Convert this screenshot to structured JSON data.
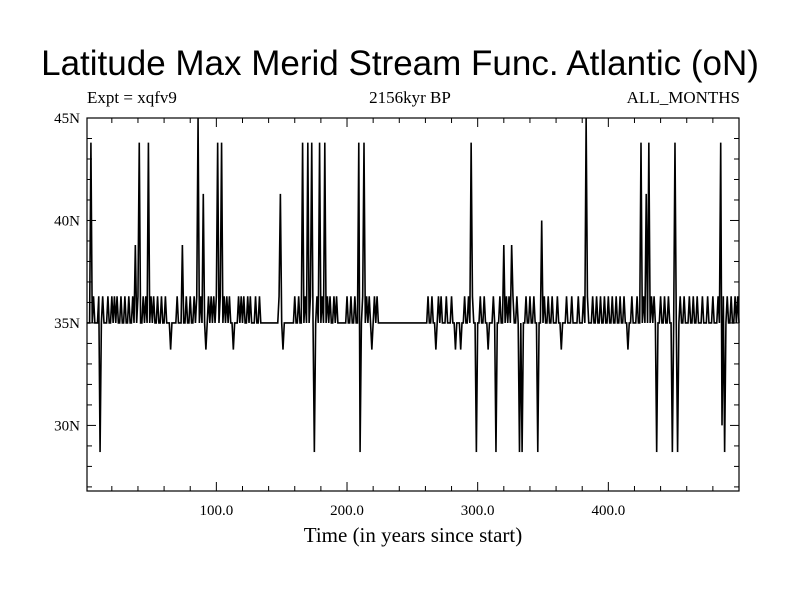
{
  "chart_data": {
    "type": "line",
    "title": "Latitude Max Merid Stream Func. Atlantic (oN)",
    "subtitle_left": "Expt = xqfv9",
    "subtitle_center": "2156kyr BP",
    "subtitle_right": "ALL_MONTHS",
    "xlabel": "Time (in years since start)",
    "ylabel": "",
    "xlim": [
      1,
      500
    ],
    "ylim": [
      26.8,
      45
    ],
    "x_ticks": [
      {
        "value": 100,
        "label": "100.0"
      },
      {
        "value": 200,
        "label": "200.0"
      },
      {
        "value": 300,
        "label": "300.0"
      },
      {
        "value": 400,
        "label": "400.0"
      }
    ],
    "y_ticks": [
      {
        "value": 30,
        "label": "30N"
      },
      {
        "value": 35,
        "label": "35N"
      },
      {
        "value": 40,
        "label": "40N"
      },
      {
        "value": 45,
        "label": "45N"
      }
    ],
    "series": [
      {
        "name": "Latitude of max meridional stream function",
        "baseline": 35,
        "x_start": 1,
        "x_step": 1,
        "count": 500,
        "deviations": [
          [
            4,
            43.8
          ],
          [
            6,
            36.3
          ],
          [
            10,
            36.3
          ],
          [
            11,
            28.7
          ],
          [
            13,
            36.3
          ],
          [
            17,
            36.3
          ],
          [
            20,
            36.3
          ],
          [
            22,
            36.3
          ],
          [
            24,
            36.3
          ],
          [
            27,
            36.3
          ],
          [
            30,
            36.3
          ],
          [
            33,
            36.3
          ],
          [
            36,
            36.3
          ],
          [
            38,
            38.8
          ],
          [
            40,
            36.3
          ],
          [
            41,
            43.8
          ],
          [
            44,
            36.3
          ],
          [
            46,
            36.3
          ],
          [
            48,
            43.8
          ],
          [
            50,
            36.3
          ],
          [
            52,
            36.3
          ],
          [
            55,
            36.3
          ],
          [
            58,
            36.3
          ],
          [
            61,
            36.3
          ],
          [
            65,
            33.7
          ],
          [
            70,
            36.3
          ],
          [
            74,
            38.8
          ],
          [
            77,
            36.3
          ],
          [
            80,
            36.3
          ],
          [
            83,
            36.3
          ],
          [
            85,
            36.3
          ],
          [
            86,
            45
          ],
          [
            88,
            36.3
          ],
          [
            90,
            41.3
          ],
          [
            92,
            33.7
          ],
          [
            94,
            36.3
          ],
          [
            96,
            36.3
          ],
          [
            98,
            36.3
          ],
          [
            100,
            36.3
          ],
          [
            101,
            43.8
          ],
          [
            103,
            36.3
          ],
          [
            104,
            43.8
          ],
          [
            106,
            36.3
          ],
          [
            108,
            36.3
          ],
          [
            110,
            36.3
          ],
          [
            113,
            33.7
          ],
          [
            117,
            36.3
          ],
          [
            119,
            36.3
          ],
          [
            121,
            36.3
          ],
          [
            124,
            36.3
          ],
          [
            126,
            36.3
          ],
          [
            130,
            36.3
          ],
          [
            133,
            36.3
          ],
          [
            148,
            36.3
          ],
          [
            149,
            41.3
          ],
          [
            151,
            33.7
          ],
          [
            160,
            36.3
          ],
          [
            163,
            36.3
          ],
          [
            166,
            43.8
          ],
          [
            168,
            36.3
          ],
          [
            170,
            43.8
          ],
          [
            172,
            36.3
          ],
          [
            173,
            43.8
          ],
          [
            175,
            28.7
          ],
          [
            177,
            36.3
          ],
          [
            179,
            43.8
          ],
          [
            181,
            36.3
          ],
          [
            183,
            43.8
          ],
          [
            185,
            36.3
          ],
          [
            187,
            36.3
          ],
          [
            190,
            36.3
          ],
          [
            192,
            36.3
          ],
          [
            200,
            36.3
          ],
          [
            203,
            36.3
          ],
          [
            206,
            36.3
          ],
          [
            209,
            43.8
          ],
          [
            210,
            28.7
          ],
          [
            212,
            36.3
          ],
          [
            213,
            43.8
          ],
          [
            215,
            36.3
          ],
          [
            217,
            36.3
          ],
          [
            219,
            33.7
          ],
          [
            221,
            36.3
          ],
          [
            223,
            36.3
          ],
          [
            262,
            36.3
          ],
          [
            265,
            36.3
          ],
          [
            268,
            33.7
          ],
          [
            270,
            36.3
          ],
          [
            272,
            36.3
          ],
          [
            276,
            36.3
          ],
          [
            280,
            36.3
          ],
          [
            283,
            33.7
          ],
          [
            287,
            33.7
          ],
          [
            290,
            36.3
          ],
          [
            293,
            36.3
          ],
          [
            295,
            43.8
          ],
          [
            296,
            36.3
          ],
          [
            299,
            28.7
          ],
          [
            302,
            36.3
          ],
          [
            305,
            36.3
          ],
          [
            308,
            33.7
          ],
          [
            312,
            36.3
          ],
          [
            314,
            28.7
          ],
          [
            317,
            36.3
          ],
          [
            320,
            38.8
          ],
          [
            322,
            36.3
          ],
          [
            324,
            36.3
          ],
          [
            326,
            38.8
          ],
          [
            327,
            36.3
          ],
          [
            330,
            36.3
          ],
          [
            332,
            28.7
          ],
          [
            334,
            28.7
          ],
          [
            337,
            36.3
          ],
          [
            340,
            36.3
          ],
          [
            343,
            36.3
          ],
          [
            346,
            28.7
          ],
          [
            349,
            40.0
          ],
          [
            351,
            36.3
          ],
          [
            354,
            36.3
          ],
          [
            357,
            36.3
          ],
          [
            361,
            36.3
          ],
          [
            364,
            33.7
          ],
          [
            368,
            36.3
          ],
          [
            372,
            36.3
          ],
          [
            377,
            36.3
          ],
          [
            381,
            36.3
          ],
          [
            383,
            45
          ],
          [
            384,
            36.3
          ],
          [
            388,
            36.3
          ],
          [
            391,
            36.3
          ],
          [
            394,
            36.3
          ],
          [
            397,
            36.3
          ],
          [
            400,
            36.3
          ],
          [
            403,
            36.3
          ],
          [
            406,
            36.3
          ],
          [
            409,
            36.3
          ],
          [
            412,
            36.3
          ],
          [
            415,
            33.7
          ],
          [
            418,
            36.3
          ],
          [
            422,
            36.3
          ],
          [
            425,
            43.8
          ],
          [
            427,
            36.3
          ],
          [
            429,
            41.3
          ],
          [
            431,
            43.8
          ],
          [
            433,
            36.3
          ],
          [
            435,
            36.3
          ],
          [
            437,
            28.7
          ],
          [
            440,
            36.3
          ],
          [
            443,
            36.3
          ],
          [
            446,
            36.3
          ],
          [
            449,
            28.7
          ],
          [
            451,
            43.8
          ],
          [
            453,
            28.7
          ],
          [
            455,
            36.3
          ],
          [
            458,
            36.3
          ],
          [
            462,
            36.3
          ],
          [
            465,
            36.3
          ],
          [
            468,
            36.3
          ],
          [
            472,
            36.3
          ],
          [
            476,
            36.3
          ],
          [
            480,
            36.3
          ],
          [
            484,
            36.3
          ],
          [
            486,
            43.8
          ],
          [
            487,
            30.0
          ],
          [
            488,
            36.3
          ],
          [
            489,
            28.7
          ],
          [
            491,
            36.3
          ],
          [
            494,
            36.3
          ],
          [
            497,
            36.3
          ],
          [
            499,
            36.3
          ]
        ]
      }
    ]
  }
}
